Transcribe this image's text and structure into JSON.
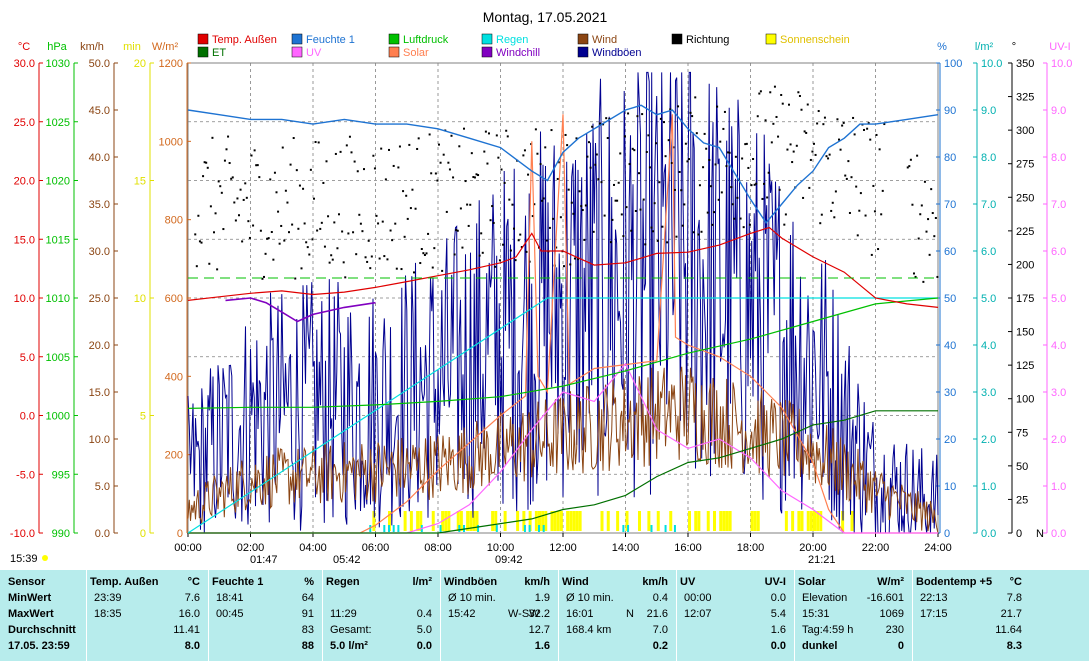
{
  "chart_data": {
    "type": "line",
    "title": "Montag, 17.05.2021",
    "legend": [
      {
        "name": "Temp. Außen",
        "color": "#e00000"
      },
      {
        "name": "Feuchte 1",
        "color": "#1e73d2"
      },
      {
        "name": "Luftdruck",
        "color": "#00c000"
      },
      {
        "name": "Regen",
        "color": "#00e0e0"
      },
      {
        "name": "Wind",
        "color": "#8b4513"
      },
      {
        "name": "Richtung",
        "color": "#000000"
      },
      {
        "name": "Sonnenschein",
        "color": "#ffff00"
      },
      {
        "name": "ET",
        "color": "#007000"
      },
      {
        "name": "UV",
        "color": "#ff66ff"
      },
      {
        "name": "Solar",
        "color": "#ff7f50"
      },
      {
        "name": "Windchill",
        "color": "#8000c0"
      },
      {
        "name": "Windböen",
        "color": "#000090"
      }
    ],
    "axes": {
      "temp": {
        "unit": "°C",
        "ticks": [
          "30.0",
          "25.0",
          "20.0",
          "15.0",
          "10.0",
          "5.0",
          "0.0",
          "-5.0",
          "-10.0"
        ],
        "ylim": [
          -10,
          30
        ],
        "color": "#e00000"
      },
      "pressure": {
        "unit": "hPa",
        "ticks": [
          "1030",
          "1025",
          "1020",
          "1015",
          "1010",
          "1005",
          "1000",
          "995",
          "990"
        ],
        "ylim": [
          990,
          1030
        ],
        "color": "#00c000"
      },
      "wind": {
        "unit": "km/h",
        "ticks": [
          "50.0",
          "45.0",
          "40.0",
          "35.0",
          "30.0",
          "25.0",
          "20.0",
          "15.0",
          "10.0",
          "5.0",
          "0.0"
        ],
        "ylim": [
          0,
          50
        ],
        "color": "#8b4513"
      },
      "sunshine": {
        "unit": "min",
        "ticks": [
          "20",
          "15",
          "10",
          "5",
          "0"
        ],
        "ylim": [
          0,
          20
        ],
        "color": "#e0e000"
      },
      "solar": {
        "unit": "W/m²",
        "ticks": [
          "1200",
          "1000",
          "800",
          "600",
          "400",
          "200",
          "0"
        ],
        "ylim": [
          0,
          1200
        ],
        "color": "#d2691e"
      },
      "humidity": {
        "unit": "%",
        "ticks": [
          "100",
          "90",
          "80",
          "70",
          "60",
          "50",
          "40",
          "30",
          "20",
          "10",
          "0"
        ],
        "ylim": [
          0,
          100
        ],
        "color": "#1e73d2"
      },
      "rain": {
        "unit": "l/m²",
        "ticks": [
          "10.0",
          "9.0",
          "8.0",
          "7.0",
          "6.0",
          "5.0",
          "4.0",
          "3.0",
          "2.0",
          "1.0",
          "0.0"
        ],
        "ylim": [
          0,
          10
        ],
        "color": "#00b0b0"
      },
      "direction": {
        "unit": "°",
        "ticks": [
          "350",
          "325",
          "300",
          "275",
          "250",
          "225",
          "200",
          "175",
          "150",
          "125",
          "100",
          "75",
          "50",
          "25",
          "0"
        ],
        "ylim": [
          0,
          360
        ],
        "bottom_label": "N",
        "color": "#000000"
      },
      "uv": {
        "unit": "UV-I",
        "ticks": [
          "10.0",
          "9.0",
          "8.0",
          "7.0",
          "6.0",
          "5.0",
          "4.0",
          "3.0",
          "2.0",
          "1.0",
          "0.0"
        ],
        "ylim": [
          0,
          10
        ],
        "color": "#ff66ff"
      },
      "x": {
        "ticks": [
          "00:00",
          "02:00",
          "04:00",
          "06:00",
          "08:00",
          "10:00",
          "12:00",
          "14:00",
          "16:00",
          "18:00",
          "20:00",
          "22:00",
          "24:00"
        ],
        "xlim": [
          0,
          24
        ]
      }
    },
    "markers": {
      "left_time": "15:39",
      "t1": "01:47",
      "t2": "05:42",
      "t3": "09:42",
      "t4": "21:21"
    },
    "series": [
      {
        "name": "Temp. Außen",
        "axis": "temp",
        "x": [
          0,
          1,
          2,
          3,
          4,
          5,
          6,
          7,
          8,
          9,
          10,
          10.5,
          11,
          11.3,
          12,
          13,
          14,
          15,
          16,
          17,
          18,
          18.6,
          19,
          20,
          21,
          22,
          23,
          24
        ],
        "values": [
          9.8,
          10.1,
          10.4,
          10.6,
          10.3,
          10.5,
          10.9,
          11.4,
          11.9,
          12.4,
          13.0,
          13.5,
          15.5,
          14.0,
          14.0,
          12.8,
          13.0,
          13.8,
          13.9,
          14.5,
          15.5,
          16.0,
          15.1,
          13.5,
          12.2,
          10.0,
          9.5,
          9.2
        ]
      },
      {
        "name": "Feuchte 1",
        "axis": "humidity",
        "x": [
          0,
          1,
          2,
          3,
          4,
          5,
          6,
          7,
          8,
          9,
          10,
          11,
          11.5,
          12,
          12.5,
          13,
          14,
          14.5,
          15,
          15.5,
          16,
          16.5,
          17,
          18,
          18.5,
          19,
          19.5,
          20,
          20.5,
          21,
          21.5,
          22,
          23,
          24
        ],
        "values": [
          90,
          89,
          88,
          88,
          87,
          88,
          87,
          87,
          86,
          84,
          82,
          77,
          75,
          81,
          84,
          86,
          90,
          91,
          89,
          90,
          86,
          83,
          82,
          71,
          66,
          70,
          74,
          77,
          82,
          84,
          87,
          87,
          88,
          89
        ]
      },
      {
        "name": "Luftdruck",
        "axis": "pressure",
        "x": [
          0,
          2,
          4,
          6,
          8,
          10,
          12,
          14,
          16,
          18,
          20,
          22,
          24
        ],
        "values": [
          1000.6,
          1000.7,
          1000.7,
          1000.9,
          1001.2,
          1001.6,
          1002.5,
          1003.8,
          1005.3,
          1006.5,
          1008.0,
          1009.5,
          1010.0
        ]
      },
      {
        "name": "ET",
        "axis": "rain",
        "x": [
          0,
          8,
          10,
          11,
          12,
          13,
          14,
          15,
          16,
          17,
          18,
          19,
          20,
          21,
          22,
          24
        ],
        "values": [
          0,
          0,
          0.2,
          0.3,
          0.5,
          0.6,
          0.8,
          1.2,
          1.5,
          1.6,
          1.8,
          2.0,
          2.3,
          2.4,
          2.6,
          2.6
        ]
      },
      {
        "name": "Regen",
        "axis": "rain",
        "x": [
          0,
          11.5,
          24
        ],
        "values": [
          0,
          5.0,
          5.0
        ]
      },
      {
        "name": "Solar",
        "axis": "solar",
        "x": [
          0,
          5.5,
          6,
          7,
          8,
          9,
          10,
          10.8,
          11,
          11.2,
          11.5,
          12,
          12.2,
          13,
          14,
          15,
          15.5,
          15.6,
          16,
          17,
          18,
          19,
          20,
          20.5,
          21,
          24
        ],
        "values": [
          0,
          0,
          20,
          80,
          160,
          230,
          300,
          350,
          1000,
          400,
          360,
          1069,
          380,
          420,
          430,
          440,
          1069,
          500,
          480,
          450,
          400,
          320,
          180,
          60,
          0,
          0
        ]
      },
      {
        "name": "UV",
        "axis": "uv",
        "x": [
          0,
          7,
          8,
          9,
          10,
          11,
          12,
          13,
          14,
          15,
          16,
          17,
          18,
          19,
          20,
          21,
          24
        ],
        "values": [
          0,
          0,
          0.2,
          0.6,
          1.3,
          2.2,
          3.0,
          2.8,
          3.6,
          2.2,
          1.8,
          2.0,
          1.6,
          0.9,
          0.5,
          0,
          0
        ]
      },
      {
        "name": "Windchill",
        "axis": "temp",
        "x": [
          1.2,
          2,
          2.5,
          3,
          3.5,
          4,
          5,
          5.5,
          6
        ],
        "values": [
          9.8,
          10.0,
          9.6,
          8.8,
          8.0,
          8.6,
          9.2,
          9.4,
          9.6
        ]
      },
      {
        "name": "Wind",
        "axis": "wind",
        "x": [
          0,
          2,
          4,
          6,
          8,
          10,
          12,
          14,
          16,
          18,
          20,
          22,
          24
        ],
        "values": [
          2,
          5,
          5.5,
          6,
          6.5,
          8,
          9.5,
          11,
          12,
          10,
          8,
          4,
          1
        ]
      },
      {
        "name": "Windböen",
        "axis": "wind",
        "x": [
          0,
          2,
          4,
          6,
          8,
          10,
          12,
          14,
          16,
          18,
          20,
          22,
          24
        ],
        "values": [
          5,
          10,
          11,
          11,
          13,
          17,
          20,
          22,
          24,
          20,
          15,
          4,
          2
        ]
      },
      {
        "name": "Richtung",
        "axis": "direction",
        "x": [
          0,
          4,
          8,
          12,
          16,
          18,
          20,
          24
        ],
        "values": [
          250,
          250,
          255,
          260,
          280,
          290,
          290,
          240
        ]
      },
      {
        "name": "Sonnenschein",
        "axis": "sunshine",
        "x": [
          5.8,
          24
        ],
        "values": [
          1,
          1
        ]
      }
    ]
  },
  "table": {
    "row_labels": [
      "Sensor",
      "MinWert",
      "MaxWert",
      "Durchschnitt",
      "17.05. 23:59"
    ],
    "columns": [
      {
        "name": "Temp. Außen",
        "unit": "°C",
        "rows": [
          [
            "23:39",
            "",
            "7.6"
          ],
          [
            "18:35",
            "",
            "16.0"
          ],
          [
            "",
            "",
            "11.41"
          ],
          [
            "",
            "",
            "8.0"
          ]
        ]
      },
      {
        "name": "Feuchte 1",
        "unit": "%",
        "rows": [
          [
            "18:41",
            "",
            "64"
          ],
          [
            "00:45",
            "",
            "91"
          ],
          [
            "",
            "",
            "83"
          ],
          [
            "",
            "",
            "88"
          ]
        ]
      },
      {
        "name": "Regen",
        "unit": "l/m²",
        "rows": [
          [
            "",
            "",
            ""
          ],
          [
            "11:29",
            "",
            "0.4"
          ],
          [
            "Gesamt:",
            "",
            "5.0"
          ],
          [
            "5.0 l/m²",
            "",
            "0.0"
          ]
        ]
      },
      {
        "name": "Windböen",
        "unit": "km/h",
        "rows": [
          [
            "Ø 10 min.",
            "",
            "1.9"
          ],
          [
            "15:42",
            "W-SW",
            "32.2"
          ],
          [
            "",
            "",
            "12.7"
          ],
          [
            "",
            "",
            "1.6"
          ]
        ]
      },
      {
        "name": "Wind",
        "unit": "km/h",
        "rows": [
          [
            "Ø 10 min.",
            "",
            "0.4"
          ],
          [
            "16:01",
            "N",
            "21.6"
          ],
          [
            "168.4 km",
            "",
            "7.0"
          ],
          [
            "",
            "",
            "0.2"
          ]
        ]
      },
      {
        "name": "UV",
        "unit": "UV-I",
        "rows": [
          [
            "00:00",
            "",
            "0.0"
          ],
          [
            "12:07",
            "",
            "5.4"
          ],
          [
            "",
            "",
            "1.6"
          ],
          [
            "",
            "",
            "0.0"
          ]
        ]
      },
      {
        "name": "Solar",
        "unit": "W/m²",
        "rows": [
          [
            "Elevation",
            "",
            "-16.601"
          ],
          [
            "15:31",
            "",
            "1069"
          ],
          [
            "Tag:4:59 h",
            "",
            "230"
          ],
          [
            "dunkel",
            "",
            "0"
          ]
        ]
      },
      {
        "name": "Bodentemp +5",
        "unit": "°C",
        "rows": [
          [
            "22:13",
            "",
            "7.8"
          ],
          [
            "17:15",
            "",
            "21.7"
          ],
          [
            "",
            "",
            "11.64"
          ],
          [
            "",
            "",
            "8.3"
          ]
        ]
      }
    ]
  }
}
